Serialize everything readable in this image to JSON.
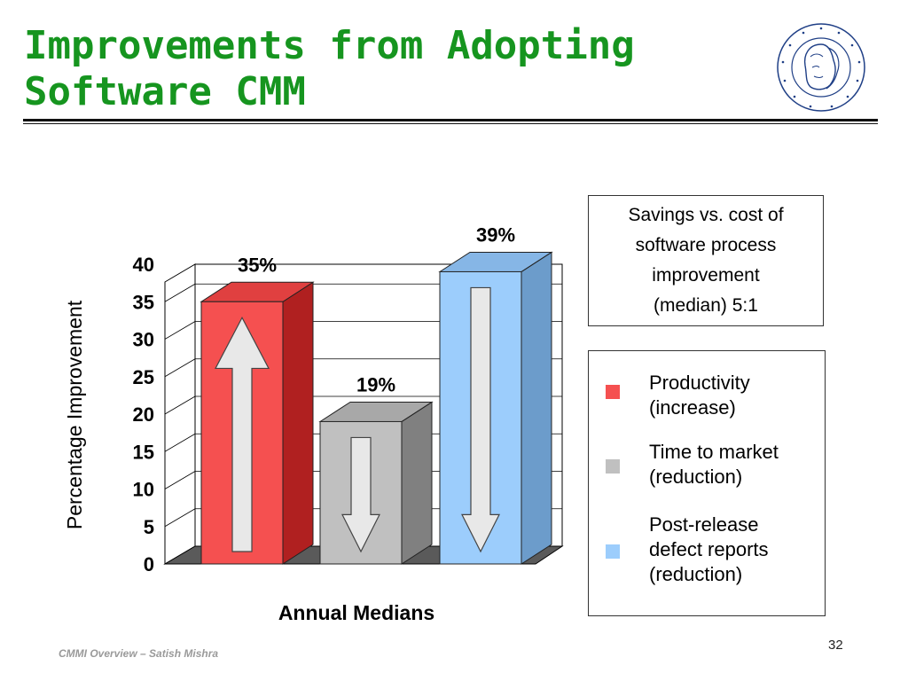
{
  "slide": {
    "title_line1": "Improvements from Adopting",
    "title_line2": "Software CMM",
    "footer": "CMMI Overview –  Satish Mishra",
    "page_number": "32",
    "title_color": "#16951f"
  },
  "logo": {
    "seal_text": "HUMBOLDT-UNIVERSITÄT ZU BERLIN"
  },
  "savings_box": {
    "line1": "Savings vs. cost of",
    "line2": "software process",
    "line3": "improvement",
    "line4": "(median) 5:1"
  },
  "legend": [
    {
      "line1": "Productivity",
      "line2": "(increase)",
      "line3": "",
      "color": "#f55050"
    },
    {
      "line1": "Time to market",
      "line2": "(reduction)",
      "line3": "",
      "color": "#c0c0c0"
    },
    {
      "line1": "Post-release",
      "line2": "defect reports",
      "line3": "(reduction)",
      "color": "#9ccdfc"
    }
  ],
  "chart_data": {
    "type": "bar",
    "categories": [
      ""
    ],
    "series": [
      {
        "name": "Productivity (increase)",
        "values": [
          35
        ],
        "label": "35%",
        "color": "#f55050",
        "arrow": "up"
      },
      {
        "name": "Time to market (reduction)",
        "values": [
          19
        ],
        "label": "19%",
        "color": "#c0c0c0",
        "arrow": "down"
      },
      {
        "name": "Post-release defect reports (reduction)",
        "values": [
          39
        ],
        "label": "39%",
        "color": "#9ccdfc",
        "arrow": "down"
      }
    ],
    "title": "",
    "xlabel": "Annual Medians",
    "ylabel": "Percentage Improvement",
    "ylim": [
      0,
      40
    ],
    "yticks": [
      "0",
      "5",
      "10",
      "15",
      "20",
      "25",
      "30",
      "35",
      "40"
    ],
    "grid": true,
    "style": "3d"
  }
}
